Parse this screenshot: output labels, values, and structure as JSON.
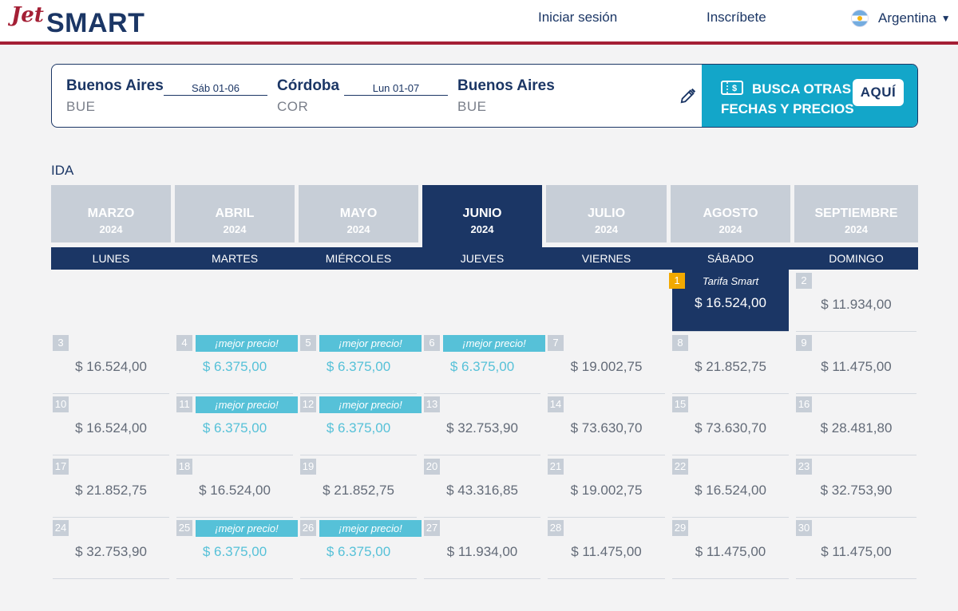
{
  "header": {
    "logo_prefix": "Jet",
    "logo_main": "SMART",
    "login": "Iniciar sesión",
    "signup": "Inscríbete",
    "country": "Argentina",
    "accent_color": "#a41f35",
    "brand_color": "#1b3665"
  },
  "summary": {
    "origin": {
      "name": "Buenos Aires",
      "code": "BUE"
    },
    "leg1_date": "Sáb 01-06",
    "stop": {
      "name": "Córdoba",
      "code": "COR"
    },
    "leg2_date": "Lun 01-07",
    "destination": {
      "name": "Buenos Aires",
      "code": "BUE"
    },
    "edit_icon": "pencil-icon",
    "promo_line1": "BUSCA OTRAS",
    "promo_line2": "FECHAS Y PRECIOS",
    "promo_button": "AQUÍ",
    "promo_color": "#13a6c9"
  },
  "calendar": {
    "section_label": "IDA",
    "months": [
      {
        "name": "MARZO",
        "year": "2024"
      },
      {
        "name": "ABRIL",
        "year": "2024"
      },
      {
        "name": "MAYO",
        "year": "2024"
      },
      {
        "name": "JUNIO",
        "year": "2024"
      },
      {
        "name": "JULIO",
        "year": "2024"
      },
      {
        "name": "AGOSTO",
        "year": "2024"
      },
      {
        "name": "SEPTIEMBRE",
        "year": "2024"
      }
    ],
    "active_month": "JUNIO",
    "weekdays": [
      "LUNES",
      "MARTES",
      "MIÉRCOLES",
      "JUEVES",
      "VIERNES",
      "SÁBADO",
      "DOMINGO"
    ],
    "selected_tag": "Tarifa Smart",
    "best_badge": "¡mejor precio!",
    "cheap_color": "#56c1d8",
    "weeks": [
      [
        null,
        null,
        null,
        null,
        null,
        {
          "day": "1",
          "price": "$ 16.524,00",
          "selected": true
        },
        {
          "day": "2",
          "price": "$ 11.934,00"
        }
      ],
      [
        {
          "day": "3",
          "price": "$ 16.524,00"
        },
        {
          "day": "4",
          "price": "$ 6.375,00",
          "best": true
        },
        {
          "day": "5",
          "price": "$ 6.375,00",
          "best": true
        },
        {
          "day": "6",
          "price": "$ 6.375,00",
          "best": true
        },
        {
          "day": "7",
          "price": "$ 19.002,75"
        },
        {
          "day": "8",
          "price": "$ 21.852,75"
        },
        {
          "day": "9",
          "price": "$ 11.475,00"
        }
      ],
      [
        {
          "day": "10",
          "price": "$ 16.524,00"
        },
        {
          "day": "11",
          "price": "$ 6.375,00",
          "best": true
        },
        {
          "day": "12",
          "price": "$ 6.375,00",
          "best": true
        },
        {
          "day": "13",
          "price": "$ 32.753,90"
        },
        {
          "day": "14",
          "price": "$ 73.630,70"
        },
        {
          "day": "15",
          "price": "$ 73.630,70"
        },
        {
          "day": "16",
          "price": "$ 28.481,80"
        }
      ],
      [
        {
          "day": "17",
          "price": "$ 21.852,75"
        },
        {
          "day": "18",
          "price": "$ 16.524,00"
        },
        {
          "day": "19",
          "price": "$ 21.852,75"
        },
        {
          "day": "20",
          "price": "$ 43.316,85"
        },
        {
          "day": "21",
          "price": "$ 19.002,75"
        },
        {
          "day": "22",
          "price": "$ 16.524,00"
        },
        {
          "day": "23",
          "price": "$ 32.753,90"
        }
      ],
      [
        {
          "day": "24",
          "price": "$ 32.753,90"
        },
        {
          "day": "25",
          "price": "$ 6.375,00",
          "best": true
        },
        {
          "day": "26",
          "price": "$ 6.375,00",
          "best": true
        },
        {
          "day": "27",
          "price": "$ 11.934,00"
        },
        {
          "day": "28",
          "price": "$ 11.475,00"
        },
        {
          "day": "29",
          "price": "$ 11.475,00"
        },
        {
          "day": "30",
          "price": "$ 11.475,00"
        }
      ]
    ]
  }
}
